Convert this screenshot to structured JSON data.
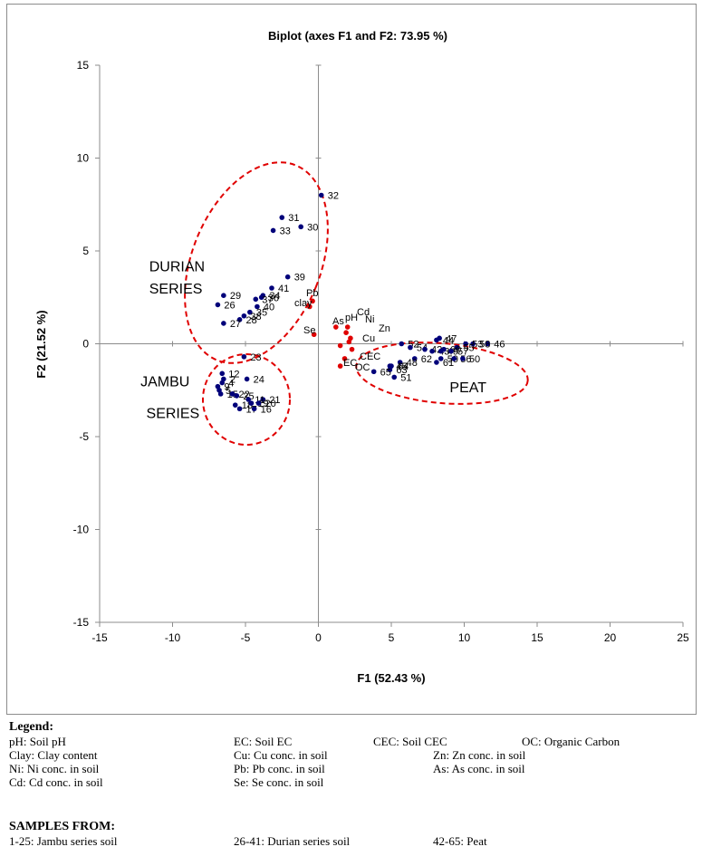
{
  "chart_data": {
    "type": "scatter",
    "title": "Biplot (axes F1 and F2: 73.95 %)",
    "xlabel": "F1 (52.43 %)",
    "ylabel": "F2 (21.52 %)",
    "xlim": [
      -15,
      25
    ],
    "ylim": [
      -15,
      15
    ],
    "xticks": [
      "-15",
      "-10",
      "-5",
      "0",
      "5",
      "10",
      "15",
      "20",
      "25"
    ],
    "yticks": [
      "15",
      "10",
      "5",
      "0",
      "-5",
      "-10",
      "-15"
    ],
    "grid": false,
    "observations": {
      "color": "#00007a",
      "points": [
        {
          "label": "32",
          "x": 0.2,
          "y": 8.0
        },
        {
          "label": "31",
          "x": -2.5,
          "y": 6.8
        },
        {
          "label": "30",
          "x": -1.2,
          "y": 6.3
        },
        {
          "label": "33",
          "x": -3.1,
          "y": 6.1
        },
        {
          "label": "39",
          "x": -2.1,
          "y": 3.6
        },
        {
          "label": "41",
          "x": -3.2,
          "y": 3.0
        },
        {
          "label": "34",
          "x": -3.8,
          "y": 2.6
        },
        {
          "label": "36",
          "x": -3.9,
          "y": 2.5
        },
        {
          "label": "29",
          "x": -6.5,
          "y": 2.6
        },
        {
          "label": "37",
          "x": -4.3,
          "y": 2.4
        },
        {
          "label": "26",
          "x": -6.9,
          "y": 2.1
        },
        {
          "label": "40",
          "x": -4.2,
          "y": 2.0
        },
        {
          "label": "35",
          "x": -4.7,
          "y": 1.7
        },
        {
          "label": "38",
          "x": -5.1,
          "y": 1.5
        },
        {
          "label": "28",
          "x": -5.4,
          "y": 1.3
        },
        {
          "label": "27",
          "x": -6.5,
          "y": 1.1
        },
        {
          "label": "23",
          "x": -5.1,
          "y": -0.7
        },
        {
          "label": "12",
          "x": -6.6,
          "y": -1.6
        },
        {
          "label": "24",
          "x": -4.9,
          "y": -1.9
        },
        {
          "label": "2",
          "x": -6.5,
          "y": -1.9
        },
        {
          "label": "4",
          "x": -6.6,
          "y": -2.1
        },
        {
          "label": "9",
          "x": -6.9,
          "y": -2.3
        },
        {
          "label": "5",
          "x": -6.8,
          "y": -2.5
        },
        {
          "label": "15",
          "x": -6.7,
          "y": -2.7
        },
        {
          "label": "22",
          "x": -5.9,
          "y": -2.7
        },
        {
          "label": "25",
          "x": -5.6,
          "y": -2.8
        },
        {
          "label": "21",
          "x": -3.8,
          "y": -3.0
        },
        {
          "label": "11",
          "x": -4.8,
          "y": -3.0
        },
        {
          "label": "18",
          "x": -5.7,
          "y": -3.3
        },
        {
          "label": "19",
          "x": -4.6,
          "y": -3.2
        },
        {
          "label": "20",
          "x": -4.1,
          "y": -3.2
        },
        {
          "label": "17",
          "x": -5.4,
          "y": -3.5
        },
        {
          "label": "16",
          "x": -4.4,
          "y": -3.5
        },
        {
          "label": "47",
          "x": 8.3,
          "y": 0.3
        },
        {
          "label": "44",
          "x": 8.1,
          "y": 0.2
        },
        {
          "label": "46",
          "x": 11.6,
          "y": 0.0
        },
        {
          "label": "58",
          "x": 10.6,
          "y": 0.0
        },
        {
          "label": "53",
          "x": 10.1,
          "y": 0.0
        },
        {
          "label": "52",
          "x": 5.7,
          "y": 0.0
        },
        {
          "label": "54",
          "x": 6.3,
          "y": -0.2
        },
        {
          "label": "55",
          "x": 9.5,
          "y": -0.2
        },
        {
          "label": "42",
          "x": 7.3,
          "y": -0.3
        },
        {
          "label": "43",
          "x": 7.8,
          "y": -0.4
        },
        {
          "label": "49",
          "x": 8.4,
          "y": -0.4
        },
        {
          "label": "60",
          "x": 8.6,
          "y": -0.3
        },
        {
          "label": "57",
          "x": 9.1,
          "y": -0.4
        },
        {
          "label": "62",
          "x": 6.6,
          "y": -0.8
        },
        {
          "label": "59",
          "x": 8.4,
          "y": -0.8
        },
        {
          "label": "56",
          "x": 9.3,
          "y": -0.8
        },
        {
          "label": "50",
          "x": 9.9,
          "y": -0.8
        },
        {
          "label": "61",
          "x": 8.1,
          "y": -1.0
        },
        {
          "label": "48",
          "x": 5.6,
          "y": -1.0
        },
        {
          "label": "45",
          "x": 4.9,
          "y": -1.2
        },
        {
          "label": "64",
          "x": 5.0,
          "y": -1.2
        },
        {
          "label": "63",
          "x": 4.9,
          "y": -1.4
        },
        {
          "label": "65",
          "x": 3.8,
          "y": -1.5
        },
        {
          "label": "51",
          "x": 5.2,
          "y": -1.8
        }
      ]
    },
    "variables": {
      "color": "#e00000",
      "points": [
        {
          "label": "Pb",
          "x": -0.4,
          "y": 2.3
        },
        {
          "label": "clay",
          "x": -0.6,
          "y": 2.0
        },
        {
          "label": "Se",
          "x": -0.3,
          "y": 0.5
        },
        {
          "label": "As",
          "x": 1.2,
          "y": 0.9
        },
        {
          "label": "pH",
          "x": 2.0,
          "y": 0.9
        },
        {
          "label": "Cd",
          "x": 1.9,
          "y": 0.6
        },
        {
          "label": "Ni",
          "x": 2.2,
          "y": 0.3
        },
        {
          "label": "Zn",
          "x": 2.1,
          "y": 0.1
        },
        {
          "label": "Cu",
          "x": 1.5,
          "y": -0.1
        },
        {
          "label": "CEC",
          "x": 2.3,
          "y": -0.3
        },
        {
          "label": "EC",
          "x": 1.8,
          "y": -0.8
        },
        {
          "label": "OC",
          "x": 1.5,
          "y": -1.2
        }
      ]
    },
    "annotations": [
      {
        "text": "DURIAN",
        "x": -11.6,
        "y": 3.9
      },
      {
        "text": "SERIES",
        "x": -11.6,
        "y": 2.7
      },
      {
        "text": "JAMBU",
        "x": -12.2,
        "y": -2.3
      },
      {
        "text": "SERIES",
        "x": -11.8,
        "y": -4.0
      },
      {
        "text": "PEAT",
        "x": 9.0,
        "y": -2.6
      }
    ],
    "group_outline_color": "#e00000"
  },
  "legend": {
    "title": "Legend:",
    "items": [
      "pH: Soil pH",
      "EC: Soil EC",
      "CEC: Soil CEC",
      "OC: Organic Carbon",
      "Clay: Clay content",
      "Cu: Cu conc. in soil",
      "Zn: Zn conc. in soil",
      "Ni: Ni conc. in soil",
      "Pb: Pb conc. in soil",
      "As: As conc. in soil",
      "Cd: Cd conc. in soil",
      "Se: Se conc. in soil"
    ],
    "samples_title": "SAMPLES FROM:",
    "samples": [
      "1-25: Jambu series soil",
      "26-41: Durian series soil",
      "42-65: Peat"
    ]
  }
}
